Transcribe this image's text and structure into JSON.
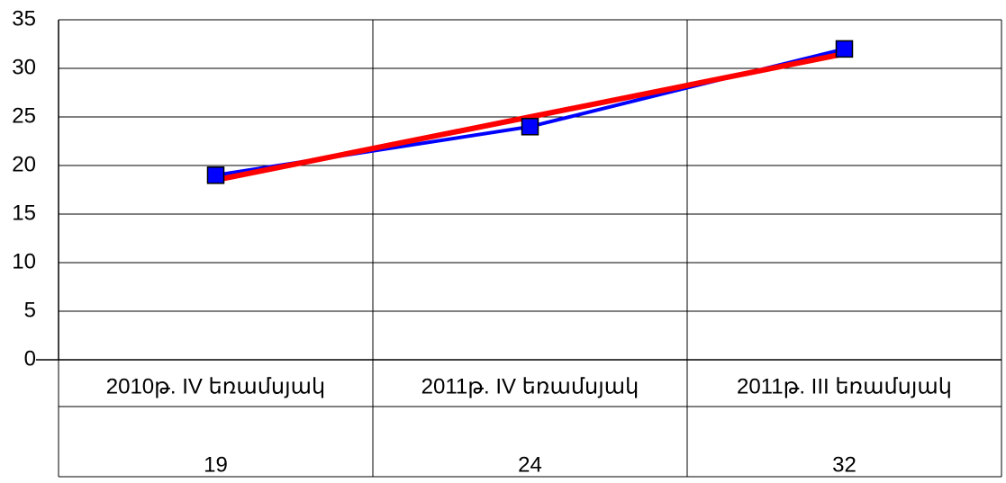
{
  "chart_data": {
    "type": "line",
    "categories": [
      "2010թ. IV եռամսյակ",
      "2011թ. IV եռամսյակ",
      "2011թ. III եռամսյակ"
    ],
    "series": [
      {
        "color": "#0000ff",
        "values": [
          19,
          24,
          32
        ],
        "marker": "square"
      },
      {
        "color": "#ff0000",
        "values": [
          18.5,
          25,
          31.5
        ]
      }
    ],
    "ylim": [
      0,
      35
    ],
    "yticks": [
      0,
      5,
      10,
      15,
      20,
      25,
      30,
      35
    ],
    "grid": true
  }
}
